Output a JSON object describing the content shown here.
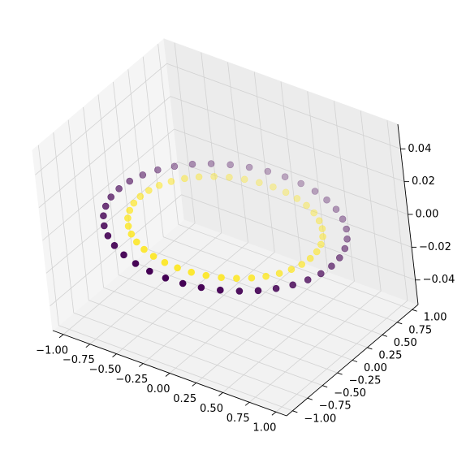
{
  "chart_data": {
    "type": "scatter",
    "projection": "3d",
    "title": "",
    "xlabel": "",
    "ylabel": "",
    "zlabel": "",
    "xlim": [
      -1.1,
      1.1
    ],
    "ylim": [
      -1.1,
      1.1
    ],
    "zlim": [
      -0.055,
      0.055
    ],
    "grid": true,
    "colormap": "viridis",
    "x_ticks": [
      {
        "value": -1.0,
        "label": "−1.00"
      },
      {
        "value": -0.75,
        "label": "−0.75"
      },
      {
        "value": -0.5,
        "label": "−0.50"
      },
      {
        "value": -0.25,
        "label": "−0.25"
      },
      {
        "value": 0.0,
        "label": "0.00"
      },
      {
        "value": 0.25,
        "label": "0.25"
      },
      {
        "value": 0.5,
        "label": "0.50"
      },
      {
        "value": 0.75,
        "label": "0.75"
      },
      {
        "value": 1.0,
        "label": "1.00"
      }
    ],
    "y_ticks": [
      {
        "value": -1.0,
        "label": "−1.00"
      },
      {
        "value": -0.75,
        "label": "−0.75"
      },
      {
        "value": -0.5,
        "label": "−0.50"
      },
      {
        "value": -0.25,
        "label": "−0.25"
      },
      {
        "value": 0.0,
        "label": "0.00"
      },
      {
        "value": 0.25,
        "label": "0.25"
      },
      {
        "value": 0.5,
        "label": "0.50"
      },
      {
        "value": 0.75,
        "label": "0.75"
      },
      {
        "value": 1.0,
        "label": "1.00"
      }
    ],
    "z_ticks": [
      {
        "value": -0.04,
        "label": "−0.04"
      },
      {
        "value": -0.02,
        "label": "−0.02"
      },
      {
        "value": 0.0,
        "label": "0.00"
      },
      {
        "value": 0.02,
        "label": "0.02"
      },
      {
        "value": 0.04,
        "label": "0.04"
      }
    ],
    "series": [
      {
        "shape": "circle",
        "radius": 1.0,
        "z": 0.0,
        "points": 40,
        "color": "#440154"
      },
      {
        "shape": "circle",
        "radius": 0.8,
        "z": 0.0,
        "points": 40,
        "color": "#fde725"
      }
    ]
  }
}
